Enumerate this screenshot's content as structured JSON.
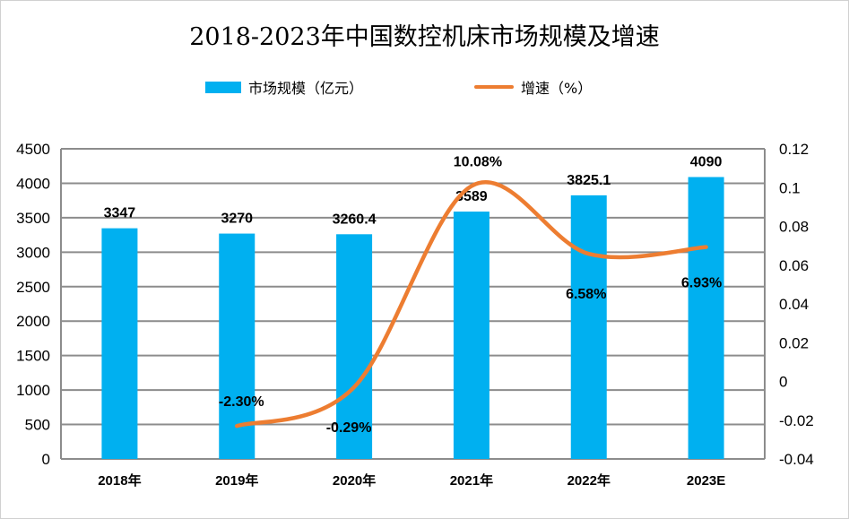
{
  "chart_data": {
    "type": "bar",
    "title": "2018-2023年中国数控机床市场规模及增速",
    "categories": [
      "2018年",
      "2019年",
      "2020年",
      "2021年",
      "2022年",
      "2023E"
    ],
    "series": [
      {
        "name": "市场规模（亿元）",
        "type": "bar",
        "axis": "left",
        "color": "#00B0F0",
        "values": [
          3347,
          3270,
          3260.4,
          3589,
          3825.1,
          4090
        ],
        "labels": [
          "3347",
          "3270",
          "3260.4",
          "3589",
          "3825.1",
          "4090"
        ]
      },
      {
        "name": "增速（%）",
        "type": "line",
        "smooth": true,
        "axis": "right",
        "color": "#ED7D31",
        "values": [
          null,
          -0.023,
          -0.0029,
          0.1008,
          0.0658,
          0.0693
        ],
        "labels": [
          "",
          "-2.30%",
          "-0.29%",
          "10.08%",
          "6.58%",
          "6.93%"
        ]
      }
    ],
    "left_axis": {
      "min": 0,
      "max": 4500,
      "ticks": [
        "0",
        "500",
        "1000",
        "1500",
        "2000",
        "2500",
        "3000",
        "3500",
        "4000",
        "4500"
      ]
    },
    "right_axis": {
      "min": -0.04,
      "max": 0.12,
      "ticks": [
        "-0.04",
        "-0.02",
        "0",
        "0.02",
        "0.04",
        "0.06",
        "0.08",
        "0.1",
        "0.12"
      ]
    },
    "grid": true,
    "legend_position": "top"
  }
}
